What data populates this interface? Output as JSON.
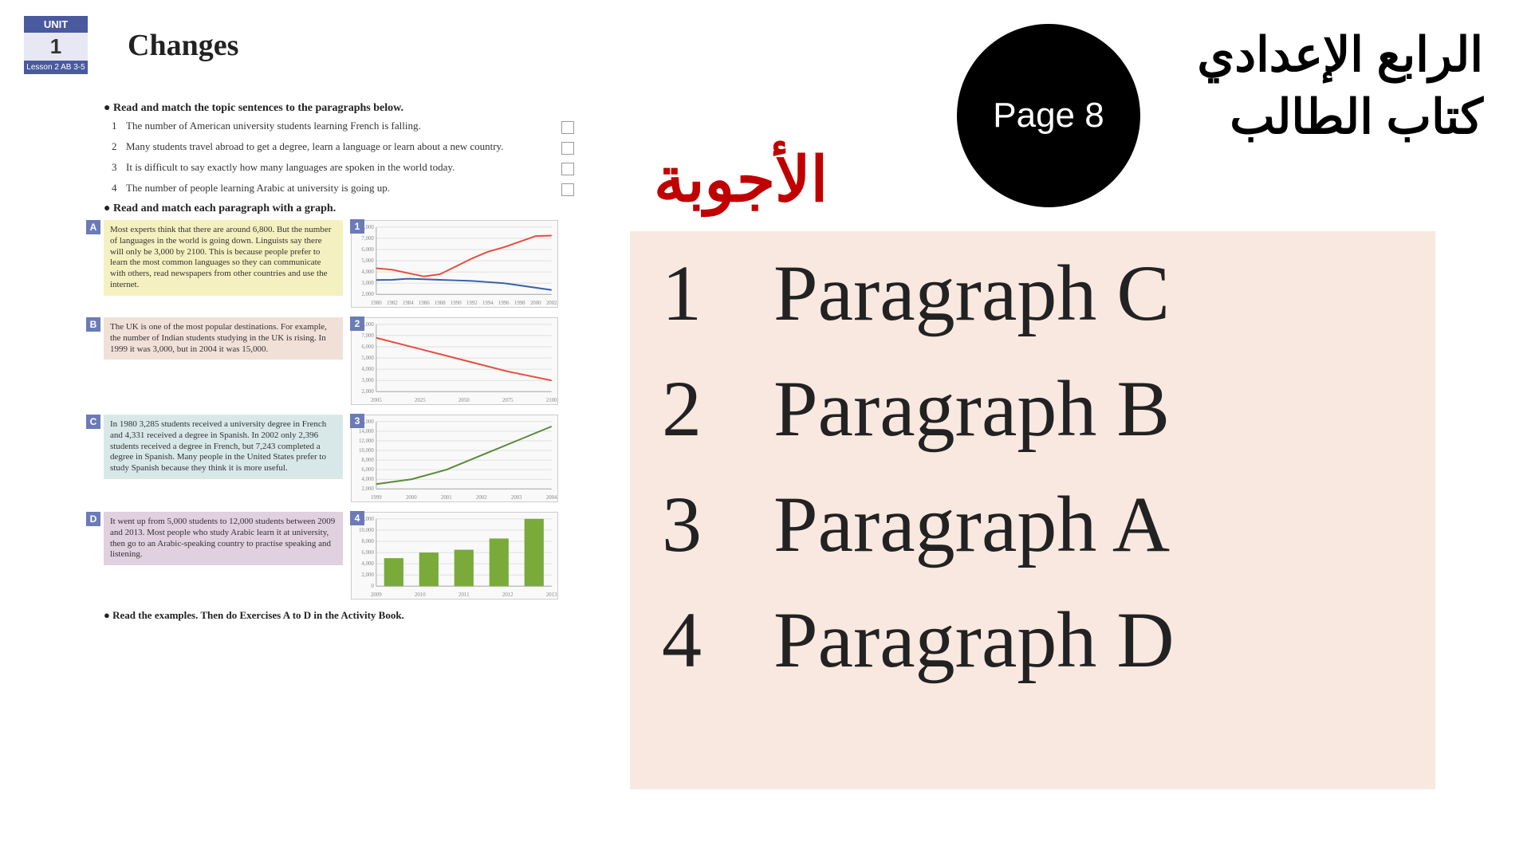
{
  "unit": {
    "label": "UNIT",
    "number": "1",
    "lesson": "Lesson 2\nAB 3-5"
  },
  "title": "Changes",
  "instruction1": "Read and match the topic sentences to the paragraphs below.",
  "topics": [
    {
      "num": "1",
      "text": "The number of American university students learning French is falling."
    },
    {
      "num": "2",
      "text": "Many students travel abroad to get a degree, learn a language or learn about a new country."
    },
    {
      "num": "3",
      "text": "It is difficult to say exactly how many languages are spoken in the world today."
    },
    {
      "num": "4",
      "text": "The number of people learning Arabic at university is going up."
    }
  ],
  "instruction2": "Read and match each paragraph with a graph.",
  "paragraphs": [
    {
      "label": "A",
      "bg": "#f5f0c0",
      "text": "Most experts think that there are around 6,800. But the number of languages in the world is going down. Linguists say there will only be 3,000 by 2100. This is because people prefer to learn the most common languages so they can communicate with others, read newspapers from other countries and use the internet."
    },
    {
      "label": "B",
      "bg": "#f0e0d8",
      "text": "The UK is one of the most popular destinations. For example, the number of Indian students studying in the UK is rising. In 1999 it was 3,000, but in 2004 it was 15,000."
    },
    {
      "label": "C",
      "bg": "#d8e8e8",
      "text": "In 1980 3,285 students received a university degree in French and 4,331 received a degree in Spanish. In 2002 only 2,396 students received a degree in French, but 7,243 completed a degree in Spanish. Many people in the United States prefer to study Spanish because they think it is more useful."
    },
    {
      "label": "D",
      "bg": "#e0d0e0",
      "text": "It went up from 5,000 students to 12,000 students between 2009 and 2013. Most people who study Arabic learn it at university, then go to an Arabic-speaking country to practise speaking and listening."
    }
  ],
  "charts": [
    {
      "label": "1",
      "type": "line",
      "ylim": [
        2000,
        8000
      ],
      "ytick_step": 1000,
      "xlabels": [
        "1980",
        "1982",
        "1984",
        "1986",
        "1988",
        "1990",
        "1992",
        "1994",
        "1996",
        "1998",
        "2000",
        "2002"
      ],
      "series": [
        {
          "color": "#e74c3c",
          "width": 2,
          "values": [
            4331,
            4200,
            3900,
            3600,
            3800,
            4500,
            5200,
            5800,
            6200,
            6700,
            7200,
            7243
          ]
        },
        {
          "color": "#3a5fa8",
          "width": 2,
          "values": [
            3285,
            3300,
            3400,
            3350,
            3300,
            3250,
            3200,
            3100,
            3000,
            2800,
            2600,
            2396
          ]
        }
      ]
    },
    {
      "label": "2",
      "type": "line",
      "ylim": [
        2000,
        8000
      ],
      "ytick_step": 1000,
      "xlabels": [
        "2005",
        "2025",
        "2050",
        "2075",
        "2100"
      ],
      "series": [
        {
          "color": "#e74c3c",
          "width": 2,
          "values": [
            6800,
            5800,
            4800,
            3800,
            3000
          ]
        }
      ]
    },
    {
      "label": "3",
      "type": "line",
      "ylim": [
        2000,
        16000
      ],
      "ytick_step": 2000,
      "xlabels": [
        "1999",
        "2000",
        "2001",
        "2002",
        "2003",
        "2004"
      ],
      "series": [
        {
          "color": "#5a8a3a",
          "width": 2,
          "values": [
            3000,
            4000,
            6000,
            9000,
            12000,
            15000
          ]
        }
      ]
    },
    {
      "label": "4",
      "type": "bar",
      "ylim": [
        0,
        12000
      ],
      "ytick_step": 2000,
      "xlabels": [
        "2009",
        "2010",
        "2011",
        "2012",
        "2013"
      ],
      "bar_color": "#7aaa3a",
      "bar_width": 0.55,
      "values": [
        5000,
        6000,
        6500,
        8500,
        12000
      ]
    }
  ],
  "footer": "Read the examples. Then do Exercises A to D in the Activity Book.",
  "right": {
    "answers_title": "الأجوبة",
    "page_circle": "Page 8",
    "ar_line1": "الرابع الإعدادي",
    "ar_line2": "كتاب الطالب",
    "answers": [
      {
        "num": "1",
        "text": "Paragraph C"
      },
      {
        "num": "2",
        "text": "Paragraph B"
      },
      {
        "num": "3",
        "text": "Paragraph A"
      },
      {
        "num": "4",
        "text": "Paragraph D"
      }
    ]
  },
  "chart_style": {
    "grid_color": "#e0e0e0",
    "axis_color": "#aaaaaa",
    "bg": "#f9f9f9",
    "tick_fontsize": 7
  }
}
